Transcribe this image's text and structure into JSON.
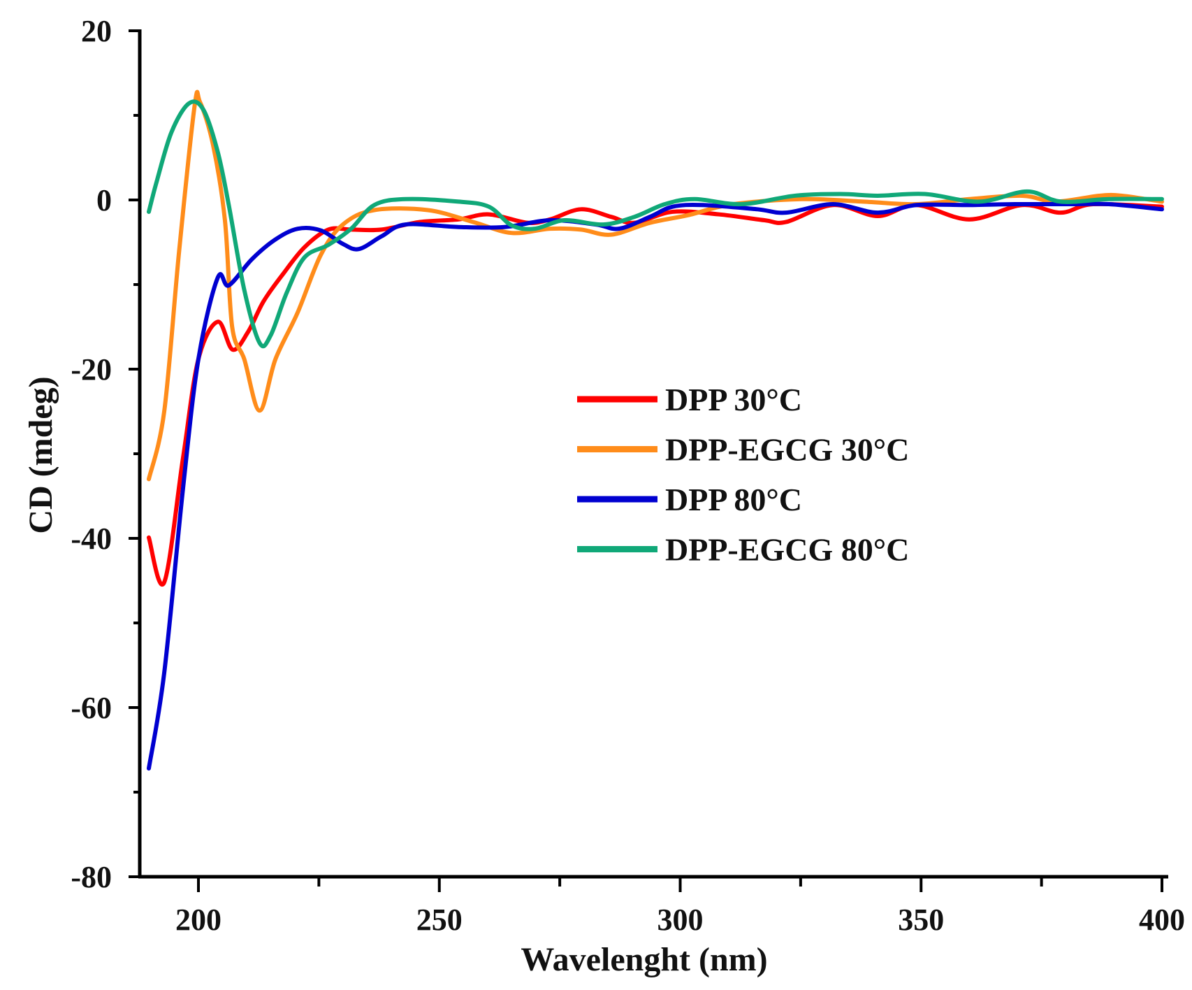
{
  "chart_data": {
    "type": "line",
    "title": "",
    "xlabel": "Wavelenght (nm)",
    "ylabel": "CD (mdeg)",
    "xlim": [
      188,
      400
    ],
    "ylim": [
      -80,
      20
    ],
    "xticks": [
      200,
      250,
      300,
      350,
      400
    ],
    "xtick_labels": [
      "200",
      "250",
      "300",
      "350",
      "400"
    ],
    "yticks": [
      -80,
      -60,
      -40,
      -20,
      0,
      20
    ],
    "ytick_labels": [
      "-80",
      "-60",
      "-40",
      "-20",
      "0",
      "20"
    ],
    "grid": false,
    "legend_position": "center-right",
    "series": [
      {
        "name": "DPP 30°C",
        "color": "#ff0000",
        "x": [
          189.7,
          192.9,
          196.8,
          200,
          204,
          207.1,
          210.3,
          213.5,
          217.5,
          222,
          227,
          231.7,
          238,
          246,
          254,
          260.3,
          268.3,
          273,
          279.4,
          285.7,
          290.5,
          298.4,
          308,
          317.5,
          322,
          331.7,
          341,
          349,
          360,
          371,
          379,
          385.7,
          400
        ],
        "y": [
          -39.9,
          -45.2,
          -30.5,
          -18.8,
          -14.4,
          -17.7,
          -15.6,
          -12,
          -8.8,
          -5.6,
          -3.5,
          -3.5,
          -3.5,
          -2.6,
          -2.3,
          -1.7,
          -2.7,
          -2.3,
          -1.1,
          -2,
          -2.7,
          -1.4,
          -1.7,
          -2.4,
          -2.6,
          -0.6,
          -1.9,
          -0.6,
          -2.3,
          -0.6,
          -1.5,
          -0.5,
          -0.8
        ]
      },
      {
        "name": "DPP-EGCG 30°C",
        "color": "#ff8c1a",
        "x": [
          189.7,
          192.9,
          196,
          199.2,
          200.3,
          203,
          205.5,
          207,
          209.5,
          212.7,
          216,
          220.6,
          225.4,
          230,
          236.5,
          247.6,
          257,
          265,
          273,
          279.4,
          285.7,
          293.7,
          301.6,
          311,
          325.4,
          338,
          349,
          360,
          371,
          377.8,
          387,
          391.7,
          400
        ],
        "y": [
          -33,
          -25,
          -6,
          11.1,
          11.6,
          6.6,
          -2.4,
          -15,
          -18.8,
          -24.9,
          -18.8,
          -13.3,
          -6.5,
          -2.9,
          -1.2,
          -1.2,
          -2.6,
          -3.9,
          -3.4,
          -3.5,
          -4.1,
          -2.7,
          -1.8,
          -0.5,
          0.1,
          -0.2,
          -0.5,
          0.1,
          0.5,
          -0.2,
          0.5,
          0.5,
          -0.2
        ]
      },
      {
        "name": "DPP 80°C",
        "color": "#0000d0",
        "x": [
          189.7,
          192.9,
          196.8,
          200,
          204,
          206.3,
          211.1,
          215.9,
          220.6,
          225.4,
          230,
          233.3,
          238,
          243,
          254,
          263.5,
          273,
          282.5,
          287.3,
          293.7,
          298.4,
          304.8,
          316,
          322,
          331.7,
          341,
          349,
          360,
          369.5,
          381,
          389,
          400
        ],
        "y": [
          -67.2,
          -55.9,
          -34.1,
          -18.8,
          -9.2,
          -10.1,
          -7,
          -4.7,
          -3.4,
          -3.6,
          -5.2,
          -5.8,
          -4.3,
          -2.9,
          -3.2,
          -3.2,
          -2.4,
          -2.9,
          -3.4,
          -2,
          -0.8,
          -0.6,
          -1.1,
          -1.5,
          -0.5,
          -1.5,
          -0.6,
          -0.6,
          -0.5,
          -0.5,
          -0.5,
          -1.1
        ]
      },
      {
        "name": "DPP-EGCG 80°C",
        "color": "#10a878",
        "x": [
          189.7,
          191.3,
          194.4,
          198,
          201,
          204,
          206.3,
          209.5,
          212.7,
          215,
          218.3,
          222,
          227,
          231.7,
          236.5,
          243,
          254,
          260.3,
          265,
          269.8,
          276,
          284,
          290.5,
          296.8,
          303,
          312.7,
          323.8,
          333.3,
          341,
          350.8,
          362,
          372,
          379,
          389,
          400
        ],
        "y": [
          -1.4,
          2.1,
          8,
          11.4,
          10.7,
          5.7,
          -0.6,
          -10.6,
          -16.9,
          -16,
          -11,
          -6.8,
          -5.3,
          -3.4,
          -0.6,
          0.1,
          -0.2,
          -0.8,
          -3,
          -3.4,
          -2.4,
          -2.9,
          -2,
          -0.5,
          0.1,
          -0.5,
          0.5,
          0.7,
          0.5,
          0.7,
          -0.2,
          1,
          -0.2,
          0.1,
          0.1
        ]
      }
    ]
  }
}
